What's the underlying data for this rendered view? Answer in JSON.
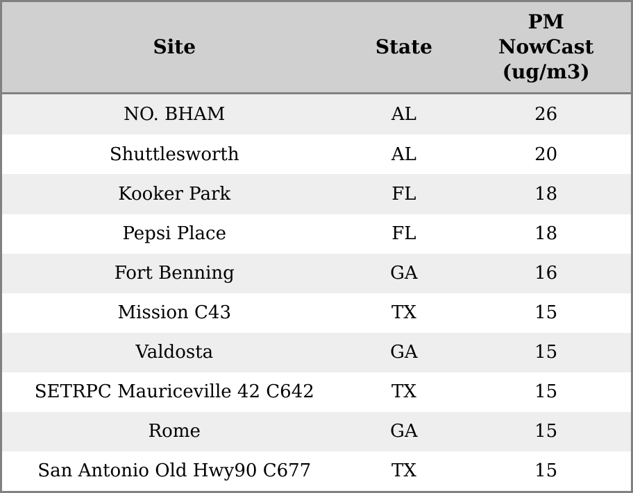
{
  "table": {
    "headers": [
      "Site",
      "State",
      "PM\nNowCast\n(ug/m3)"
    ],
    "rows": [
      {
        "site": "NO. BHAM",
        "state": "AL",
        "pm_nowcast": "26"
      },
      {
        "site": "Shuttlesworth",
        "state": "AL",
        "pm_nowcast": "20"
      },
      {
        "site": "Kooker Park",
        "state": "FL",
        "pm_nowcast": "18"
      },
      {
        "site": "Pepsi Place",
        "state": "FL",
        "pm_nowcast": "18"
      },
      {
        "site": "Fort Benning",
        "state": "GA",
        "pm_nowcast": "16"
      },
      {
        "site": "Mission C43",
        "state": "TX",
        "pm_nowcast": "15"
      },
      {
        "site": "Valdosta",
        "state": "GA",
        "pm_nowcast": "15"
      },
      {
        "site": "SETRPC Mauriceville 42 C642",
        "state": "TX",
        "pm_nowcast": "15"
      },
      {
        "site": "Rome",
        "state": "GA",
        "pm_nowcast": "15"
      },
      {
        "site": "San Antonio Old Hwy90 C677",
        "state": "TX",
        "pm_nowcast": "15"
      }
    ]
  },
  "chart_data": {
    "type": "table",
    "title": "",
    "columns": [
      "Site",
      "State",
      "PM NowCast (ug/m3)"
    ],
    "categories": [
      "NO. BHAM",
      "Shuttlesworth",
      "Kooker Park",
      "Pepsi Place",
      "Fort Benning",
      "Mission C43",
      "Valdosta",
      "SETRPC Mauriceville 42 C642",
      "Rome",
      "San Antonio Old Hwy90 C677"
    ],
    "series": [
      {
        "name": "State",
        "values": [
          "AL",
          "AL",
          "FL",
          "FL",
          "GA",
          "TX",
          "GA",
          "TX",
          "GA",
          "TX"
        ]
      },
      {
        "name": "PM NowCast (ug/m3)",
        "values": [
          26,
          20,
          18,
          18,
          16,
          15,
          15,
          15,
          15,
          15
        ]
      }
    ],
    "layout_hints": {
      "zebra_striping": true,
      "header_background": "#d0d0d0",
      "row_alt_background": "#eeeeee"
    }
  },
  "colors": {
    "border": "#818181",
    "header_background": "#d0d0d0",
    "row_odd_background": "#eeeeee",
    "row_even_background": "#ffffff",
    "text": "#000000"
  }
}
